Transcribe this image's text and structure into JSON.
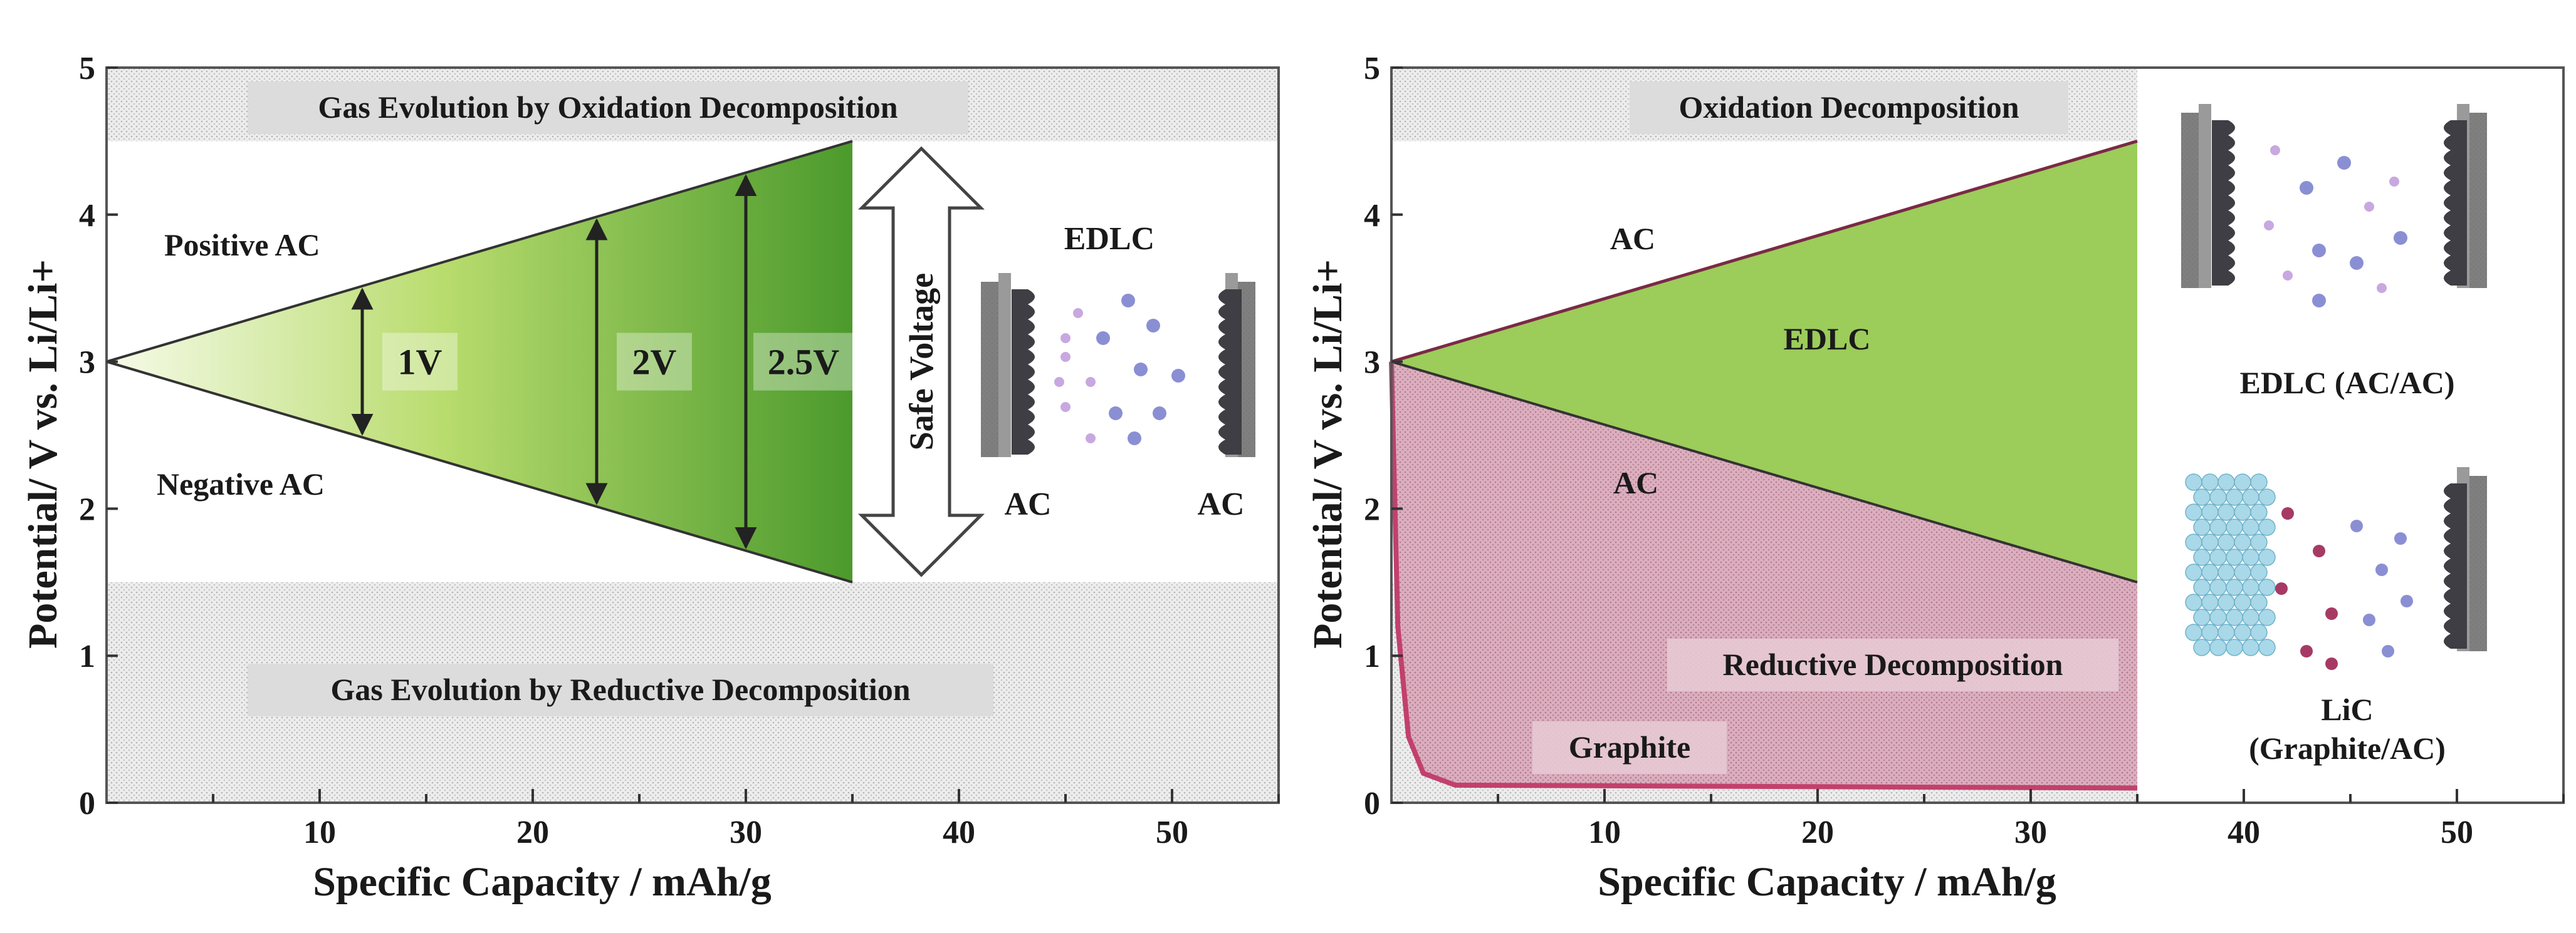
{
  "chart_data": [
    {
      "type": "area",
      "title": "",
      "xlabel": "Specific Capacity / mAh/g",
      "ylabel": "Potential/ V vs. Li/Li+",
      "xlim": [
        0,
        55
      ],
      "ylim": [
        0,
        5
      ],
      "x_ticks": [
        10,
        20,
        30,
        40,
        50
      ],
      "y_ticks": [
        0,
        1,
        2,
        3,
        4,
        5
      ],
      "grid": false,
      "series": [
        {
          "name": "Positive AC",
          "x": [
            0,
            35
          ],
          "y": [
            3.0,
            4.5
          ]
        },
        {
          "name": "Negative AC",
          "x": [
            0,
            35
          ],
          "y": [
            3.0,
            1.5
          ]
        }
      ],
      "bands": [
        {
          "label": "Gas Evolution by Oxidation Decomposition",
          "y_range": [
            4.5,
            5.0
          ]
        },
        {
          "label": "Gas Evolution by Reductive Decomposition",
          "y_range": [
            0.0,
            1.5
          ]
        }
      ],
      "voltage_markers": [
        {
          "label": "1V",
          "x": 12
        },
        {
          "label": "2V",
          "x": 23
        },
        {
          "label": "2.5V",
          "x": 30
        }
      ],
      "annotations": {
        "positive_label": "Positive AC",
        "negative_label": "Negative AC",
        "safe_voltage": "Safe Voltage",
        "device_title": "EDLC",
        "electrode_left": "AC",
        "electrode_right": "AC"
      }
    },
    {
      "type": "area",
      "title": "",
      "xlabel": "Specific Capacity / mAh/g",
      "ylabel": "Potential/ V vs. Li/Li+",
      "xlim": [
        0,
        55
      ],
      "ylim": [
        0,
        5
      ],
      "x_ticks": [
        10,
        20,
        30,
        40,
        50
      ],
      "y_ticks": [
        0,
        1,
        2,
        3,
        4,
        5
      ],
      "grid": false,
      "series": [
        {
          "name": "AC (positive)",
          "x": [
            0,
            35
          ],
          "y": [
            3.0,
            4.5
          ]
        },
        {
          "name": "AC (negative)",
          "x": [
            0,
            35
          ],
          "y": [
            3.0,
            1.5
          ]
        },
        {
          "name": "Graphite",
          "x": [
            0,
            0.3,
            0.8,
            1.5,
            3,
            35
          ],
          "y": [
            3.0,
            1.2,
            0.45,
            0.2,
            0.12,
            0.1
          ]
        }
      ],
      "bands": [
        {
          "label": "Oxidation Decomposition",
          "y_range": [
            4.5,
            5.0
          ]
        },
        {
          "label": "Reductive Decomposition",
          "y_range": [
            0.0,
            1.5
          ]
        }
      ],
      "annotations": {
        "ac_top": "AC",
        "edlc_label": "EDLC",
        "ac_bottom": "AC",
        "graphite_label": "Graphite",
        "device1_caption": "EDLC (AC/AC)",
        "device2_caption_1": "LiC",
        "device2_caption_2": "(Graphite/AC)"
      }
    }
  ]
}
